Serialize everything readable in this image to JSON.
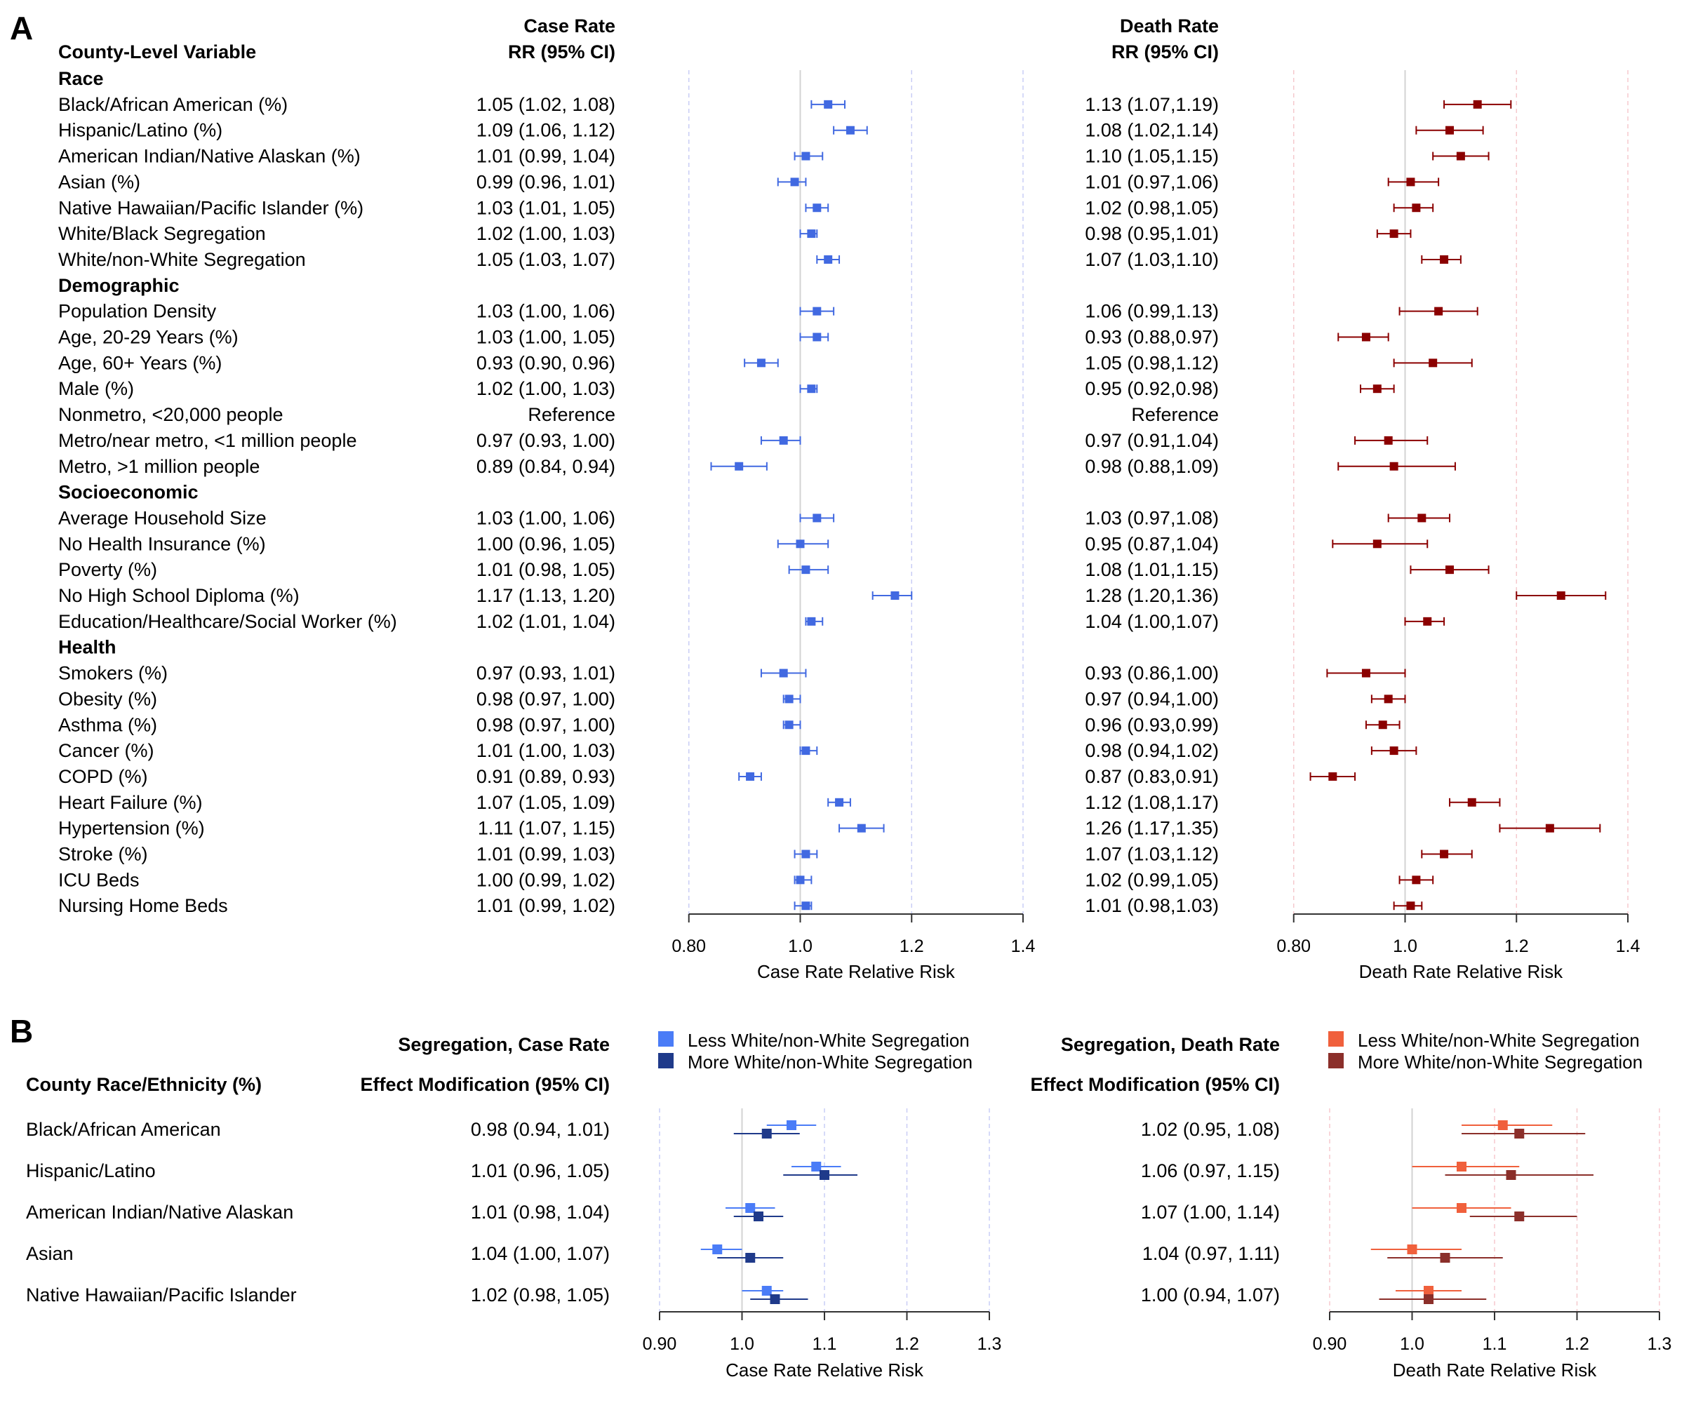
{
  "panels": {
    "A": "A",
    "B": "B"
  },
  "panel_a": {
    "header": {
      "variable": "County-Level Variable",
      "case_title": "Case Rate",
      "case_sub": "RR (95% CI)",
      "death_title": "Death Rate",
      "death_sub": "RR (95% CI)"
    },
    "colors": {
      "case": "#4169e1",
      "death": "#8b0000",
      "case_grid": "#c9cdf5",
      "death_grid": "#f5c9cd"
    }
  },
  "panel_b": {
    "header": {
      "variable": "County Race/Ethnicity (%)",
      "case_title": "Segregation, Case Rate",
      "case_sub": "Effect Modification (95% CI)",
      "death_title": "Segregation, Death Rate",
      "death_sub": "Effect Modification (95% CI)"
    },
    "legend_case": [
      {
        "label": "Less White/non-White Segregation",
        "color": "#4a7cf7"
      },
      {
        "label": "More White/non-White Segregation",
        "color": "#1f3a8a"
      }
    ],
    "legend_death": [
      {
        "label": "Less White/non-White Segregation",
        "color": "#f0603c"
      },
      {
        "label": "More White/non-White Segregation",
        "color": "#8b2f2a"
      }
    ]
  },
  "chart_data": [
    {
      "type": "forest",
      "title": "Case Rate",
      "xlabel": "Case Rate Relative Risk",
      "xlim": [
        0.76,
        1.4
      ],
      "xticks": [
        "0.80",
        "1.0",
        "1.2",
        "1.4"
      ],
      "xtick_values": [
        0.8,
        1.0,
        1.2,
        1.4
      ],
      "reference_line": 1.0,
      "rows": [
        {
          "label": "Race",
          "group": true
        },
        {
          "label": "Black/African American (%)",
          "text": "1.05 (1.02, 1.08)",
          "est": 1.05,
          "lo": 1.02,
          "hi": 1.08
        },
        {
          "label": "Hispanic/Latino (%)",
          "text": "1.09 (1.06, 1.12)",
          "est": 1.09,
          "lo": 1.06,
          "hi": 1.12
        },
        {
          "label": "American Indian/Native Alaskan (%)",
          "text": "1.01 (0.99, 1.04)",
          "est": 1.01,
          "lo": 0.99,
          "hi": 1.04
        },
        {
          "label": "Asian (%)",
          "text": "0.99 (0.96, 1.01)",
          "est": 0.99,
          "lo": 0.96,
          "hi": 1.01
        },
        {
          "label": "Native Hawaiian/Pacific Islander (%)",
          "text": "1.03 (1.01, 1.05)",
          "est": 1.03,
          "lo": 1.01,
          "hi": 1.05
        },
        {
          "label": "White/Black Segregation",
          "text": "1.02 (1.00, 1.03)",
          "est": 1.02,
          "lo": 1.0,
          "hi": 1.03
        },
        {
          "label": "White/non-White Segregation",
          "text": "1.05 (1.03, 1.07)",
          "est": 1.05,
          "lo": 1.03,
          "hi": 1.07
        },
        {
          "label": "Demographic",
          "group": true
        },
        {
          "label": "Population Density",
          "text": "1.03 (1.00, 1.06)",
          "est": 1.03,
          "lo": 1.0,
          "hi": 1.06
        },
        {
          "label": "Age, 20-29 Years (%)",
          "text": "1.03 (1.00, 1.05)",
          "est": 1.03,
          "lo": 1.0,
          "hi": 1.05
        },
        {
          "label": "Age, 60+ Years (%)",
          "text": "0.93 (0.90, 0.96)",
          "est": 0.93,
          "lo": 0.9,
          "hi": 0.96
        },
        {
          "label": "Male (%)",
          "text": "1.02 (1.00, 1.03)",
          "est": 1.02,
          "lo": 1.0,
          "hi": 1.03
        },
        {
          "label": "Nonmetro, <20,000 people",
          "text": "Reference"
        },
        {
          "label": "Metro/near metro, <1 million people",
          "text": "0.97 (0.93, 1.00)",
          "est": 0.97,
          "lo": 0.93,
          "hi": 1.0
        },
        {
          "label": "Metro, >1 million people",
          "text": "0.89 (0.84, 0.94)",
          "est": 0.89,
          "lo": 0.84,
          "hi": 0.94
        },
        {
          "label": "Socioeconomic",
          "group": true
        },
        {
          "label": "Average Household Size",
          "text": "1.03 (1.00, 1.06)",
          "est": 1.03,
          "lo": 1.0,
          "hi": 1.06
        },
        {
          "label": "No Health Insurance (%)",
          "text": "1.00 (0.96, 1.05)",
          "est": 1.0,
          "lo": 0.96,
          "hi": 1.05
        },
        {
          "label": "Poverty (%)",
          "text": "1.01 (0.98, 1.05)",
          "est": 1.01,
          "lo": 0.98,
          "hi": 1.05
        },
        {
          "label": "No High School Diploma (%)",
          "text": "1.17 (1.13, 1.20)",
          "est": 1.17,
          "lo": 1.13,
          "hi": 1.2
        },
        {
          "label": "Education/Healthcare/Social Worker (%)",
          "text": "1.02 (1.01, 1.04)",
          "est": 1.02,
          "lo": 1.01,
          "hi": 1.04
        },
        {
          "label": "Health",
          "group": true
        },
        {
          "label": "Smokers (%)",
          "text": "0.97 (0.93, 1.01)",
          "est": 0.97,
          "lo": 0.93,
          "hi": 1.01
        },
        {
          "label": "Obesity (%)",
          "text": "0.98 (0.97, 1.00)",
          "est": 0.98,
          "lo": 0.97,
          "hi": 1.0
        },
        {
          "label": "Asthma (%)",
          "text": "0.98 (0.97, 1.00)",
          "est": 0.98,
          "lo": 0.97,
          "hi": 1.0
        },
        {
          "label": "Cancer (%)",
          "text": "1.01 (1.00, 1.03)",
          "est": 1.01,
          "lo": 1.0,
          "hi": 1.03
        },
        {
          "label": "COPD (%)",
          "text": "0.91 (0.89, 0.93)",
          "est": 0.91,
          "lo": 0.89,
          "hi": 0.93
        },
        {
          "label": "Heart Failure (%)",
          "text": "1.07 (1.05, 1.09)",
          "est": 1.07,
          "lo": 1.05,
          "hi": 1.09
        },
        {
          "label": "Hypertension (%)",
          "text": "1.11 (1.07, 1.15)",
          "est": 1.11,
          "lo": 1.07,
          "hi": 1.15
        },
        {
          "label": "Stroke (%)",
          "text": "1.01 (0.99, 1.03)",
          "est": 1.01,
          "lo": 0.99,
          "hi": 1.03
        },
        {
          "label": "ICU Beds",
          "text": "1.00 (0.99, 1.02)",
          "est": 1.0,
          "lo": 0.99,
          "hi": 1.02
        },
        {
          "label": "Nursing Home Beds",
          "text": "1.01 (0.99, 1.02)",
          "est": 1.01,
          "lo": 0.99,
          "hi": 1.02
        }
      ]
    },
    {
      "type": "forest",
      "title": "Death Rate",
      "xlabel": "Death Rate Relative Risk",
      "xlim": [
        0.76,
        1.4
      ],
      "xticks": [
        "0.80",
        "1.0",
        "1.2",
        "1.4"
      ],
      "xtick_values": [
        0.8,
        1.0,
        1.2,
        1.4
      ],
      "reference_line": 1.0,
      "rows": [
        {
          "label": "Race",
          "group": true
        },
        {
          "label": "Black/African American (%)",
          "text": "1.13 (1.07,1.19)",
          "est": 1.13,
          "lo": 1.07,
          "hi": 1.19
        },
        {
          "label": "Hispanic/Latino (%)",
          "text": "1.08 (1.02,1.14)",
          "est": 1.08,
          "lo": 1.02,
          "hi": 1.14
        },
        {
          "label": "American Indian/Native Alaskan (%)",
          "text": "1.10 (1.05,1.15)",
          "est": 1.1,
          "lo": 1.05,
          "hi": 1.15
        },
        {
          "label": "Asian (%)",
          "text": "1.01 (0.97,1.06)",
          "est": 1.01,
          "lo": 0.97,
          "hi": 1.06
        },
        {
          "label": "Native Hawaiian/Pacific Islander (%)",
          "text": "1.02 (0.98,1.05)",
          "est": 1.02,
          "lo": 0.98,
          "hi": 1.05
        },
        {
          "label": "White/Black Segregation",
          "text": "0.98 (0.95,1.01)",
          "est": 0.98,
          "lo": 0.95,
          "hi": 1.01
        },
        {
          "label": "White/non-White Segregation",
          "text": "1.07 (1.03,1.10)",
          "est": 1.07,
          "lo": 1.03,
          "hi": 1.1
        },
        {
          "label": "Demographic",
          "group": true
        },
        {
          "label": "Population Density",
          "text": "1.06 (0.99,1.13)",
          "est": 1.06,
          "lo": 0.99,
          "hi": 1.13
        },
        {
          "label": "Age, 20-29 Years (%)",
          "text": "0.93 (0.88,0.97)",
          "est": 0.93,
          "lo": 0.88,
          "hi": 0.97
        },
        {
          "label": "Age, 60+ Years (%)",
          "text": "1.05 (0.98,1.12)",
          "est": 1.05,
          "lo": 0.98,
          "hi": 1.12
        },
        {
          "label": "Male (%)",
          "text": "0.95 (0.92,0.98)",
          "est": 0.95,
          "lo": 0.92,
          "hi": 0.98
        },
        {
          "label": "Nonmetro, <20,000 people",
          "text": "Reference"
        },
        {
          "label": "Metro/near metro, <1 million people",
          "text": "0.97 (0.91,1.04)",
          "est": 0.97,
          "lo": 0.91,
          "hi": 1.04
        },
        {
          "label": "Metro, >1 million people",
          "text": "0.98 (0.88,1.09)",
          "est": 0.98,
          "lo": 0.88,
          "hi": 1.09
        },
        {
          "label": "Socioeconomic",
          "group": true
        },
        {
          "label": "Average Household Size",
          "text": "1.03 (0.97,1.08)",
          "est": 1.03,
          "lo": 0.97,
          "hi": 1.08
        },
        {
          "label": "No Health Insurance (%)",
          "text": "0.95 (0.87,1.04)",
          "est": 0.95,
          "lo": 0.87,
          "hi": 1.04
        },
        {
          "label": "Poverty (%)",
          "text": "1.08 (1.01,1.15)",
          "est": 1.08,
          "lo": 1.01,
          "hi": 1.15
        },
        {
          "label": "No High School Diploma (%)",
          "text": "1.28 (1.20,1.36)",
          "est": 1.28,
          "lo": 1.2,
          "hi": 1.36
        },
        {
          "label": "Education/Healthcare/Social Worker (%)",
          "text": "1.04 (1.00,1.07)",
          "est": 1.04,
          "lo": 1.0,
          "hi": 1.07
        },
        {
          "label": "Health",
          "group": true
        },
        {
          "label": "Smokers (%)",
          "text": "0.93 (0.86,1.00)",
          "est": 0.93,
          "lo": 0.86,
          "hi": 1.0
        },
        {
          "label": "Obesity (%)",
          "text": "0.97 (0.94,1.00)",
          "est": 0.97,
          "lo": 0.94,
          "hi": 1.0
        },
        {
          "label": "Asthma (%)",
          "text": "0.96 (0.93,0.99)",
          "est": 0.96,
          "lo": 0.93,
          "hi": 0.99
        },
        {
          "label": "Cancer (%)",
          "text": "0.98 (0.94,1.02)",
          "est": 0.98,
          "lo": 0.94,
          "hi": 1.02
        },
        {
          "label": "COPD (%)",
          "text": "0.87 (0.83,0.91)",
          "est": 0.87,
          "lo": 0.83,
          "hi": 0.91
        },
        {
          "label": "Heart Failure (%)",
          "text": "1.12 (1.08,1.17)",
          "est": 1.12,
          "lo": 1.08,
          "hi": 1.17
        },
        {
          "label": "Hypertension (%)",
          "text": "1.26 (1.17,1.35)",
          "est": 1.26,
          "lo": 1.17,
          "hi": 1.35
        },
        {
          "label": "Stroke (%)",
          "text": "1.07 (1.03,1.12)",
          "est": 1.07,
          "lo": 1.03,
          "hi": 1.12
        },
        {
          "label": "ICU Beds",
          "text": "1.02 (0.99,1.05)",
          "est": 1.02,
          "lo": 0.99,
          "hi": 1.05
        },
        {
          "label": "Nursing Home Beds",
          "text": "1.01 (0.98,1.03)",
          "est": 1.01,
          "lo": 0.98,
          "hi": 1.03
        }
      ]
    },
    {
      "type": "forest",
      "title": "Segregation, Case Rate",
      "xlabel": "Case Rate Relative Risk",
      "xlim": [
        0.9,
        1.3
      ],
      "xticks": [
        "0.90",
        "1.0",
        "1.1",
        "1.2",
        "1.3"
      ],
      "xtick_values": [
        0.9,
        1.0,
        1.1,
        1.2,
        1.3
      ],
      "reference_line": 1.0,
      "series": [
        {
          "name": "Less White/non-White Segregation",
          "color": "#4a7cf7"
        },
        {
          "name": "More White/non-White Segregation",
          "color": "#1f3a8a"
        }
      ],
      "rows": [
        {
          "label": "Black/African American",
          "text": "0.98 (0.94, 1.01)",
          "less": {
            "est": 1.06,
            "lo": 1.03,
            "hi": 1.09
          },
          "more": {
            "est": 1.03,
            "lo": 0.99,
            "hi": 1.07
          }
        },
        {
          "label": "Hispanic/Latino",
          "text": "1.01 (0.96, 1.05)",
          "less": {
            "est": 1.09,
            "lo": 1.06,
            "hi": 1.12
          },
          "more": {
            "est": 1.1,
            "lo": 1.05,
            "hi": 1.14
          }
        },
        {
          "label": "American Indian/Native Alaskan",
          "text": "1.01 (0.98, 1.04)",
          "less": {
            "est": 1.01,
            "lo": 0.98,
            "hi": 1.04
          },
          "more": {
            "est": 1.02,
            "lo": 0.99,
            "hi": 1.05
          }
        },
        {
          "label": "Asian",
          "text": "1.04 (1.00, 1.07)",
          "less": {
            "est": 0.97,
            "lo": 0.95,
            "hi": 1.0
          },
          "more": {
            "est": 1.01,
            "lo": 0.97,
            "hi": 1.05
          }
        },
        {
          "label": "Native Hawaiian/Pacific Islander",
          "text": "1.02 (0.98, 1.05)",
          "less": {
            "est": 1.03,
            "lo": 1.0,
            "hi": 1.05
          },
          "more": {
            "est": 1.04,
            "lo": 1.01,
            "hi": 1.08
          }
        }
      ]
    },
    {
      "type": "forest",
      "title": "Segregation, Death Rate",
      "xlabel": "Death Rate Relative Risk",
      "xlim": [
        0.9,
        1.3
      ],
      "xticks": [
        "0.90",
        "1.0",
        "1.1",
        "1.2",
        "1.3"
      ],
      "xtick_values": [
        0.9,
        1.0,
        1.1,
        1.2,
        1.3
      ],
      "reference_line": 1.0,
      "series": [
        {
          "name": "Less White/non-White Segregation",
          "color": "#f0603c"
        },
        {
          "name": "More White/non-White Segregation",
          "color": "#8b2f2a"
        }
      ],
      "rows": [
        {
          "label": "Black/African American",
          "text": "1.02 (0.95, 1.08)",
          "less": {
            "est": 1.11,
            "lo": 1.06,
            "hi": 1.17
          },
          "more": {
            "est": 1.13,
            "lo": 1.06,
            "hi": 1.21
          }
        },
        {
          "label": "Hispanic/Latino",
          "text": "1.06 (0.97, 1.15)",
          "less": {
            "est": 1.06,
            "lo": 1.0,
            "hi": 1.13
          },
          "more": {
            "est": 1.12,
            "lo": 1.04,
            "hi": 1.22
          }
        },
        {
          "label": "American Indian/Native Alaskan",
          "text": "1.07 (1.00, 1.14)",
          "less": {
            "est": 1.06,
            "lo": 1.0,
            "hi": 1.12
          },
          "more": {
            "est": 1.13,
            "lo": 1.07,
            "hi": 1.2
          }
        },
        {
          "label": "Asian",
          "text": "1.04 (0.97, 1.11)",
          "less": {
            "est": 1.0,
            "lo": 0.95,
            "hi": 1.06
          },
          "more": {
            "est": 1.04,
            "lo": 0.97,
            "hi": 1.11
          }
        },
        {
          "label": "Native Hawaiian/Pacific Islander",
          "text": "1.00 (0.94, 1.07)",
          "less": {
            "est": 1.02,
            "lo": 0.98,
            "hi": 1.06
          },
          "more": {
            "est": 1.02,
            "lo": 0.96,
            "hi": 1.09
          }
        }
      ]
    }
  ]
}
